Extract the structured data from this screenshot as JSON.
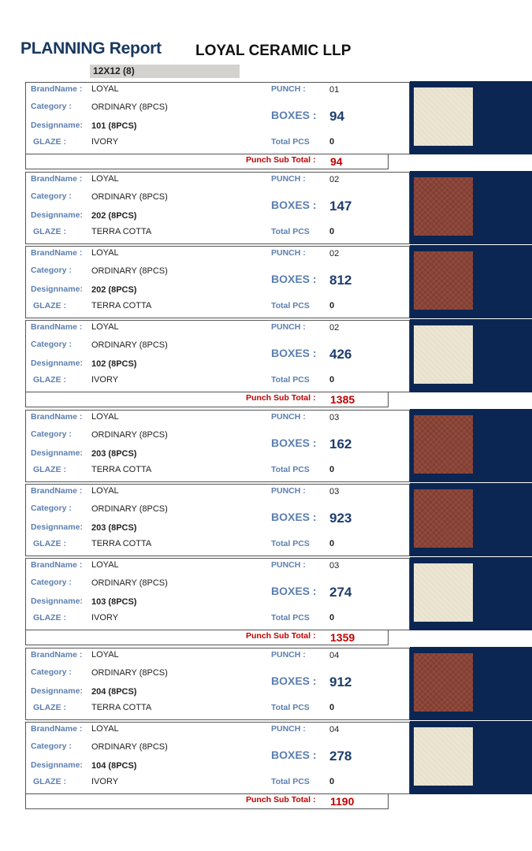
{
  "header": {
    "title": "PLANNING Report",
    "company": "LOYAL CERAMIC LLP",
    "size_group": "12X12 (8)"
  },
  "labels": {
    "brand": "BrandName :",
    "category": "Category :",
    "design": "Designname:",
    "glaze": "GLAZE :",
    "punch": "PUNCH :",
    "boxes": "BOXES :",
    "total_pcs": "Total PCS",
    "subtotal": "Punch Sub Total :"
  },
  "colors": {
    "navy": "#0b2652",
    "ivory": "#ebe5d2",
    "terra_cotta": "#8b4336",
    "label_blue": "#5c7fb0",
    "subtotal_red": "#c00000"
  },
  "rows": [
    {
      "brand": "LOYAL",
      "category": "ORDINARY (8PCS)",
      "design": "101 (8PCS)",
      "glaze": "IVORY",
      "punch": "01",
      "boxes": "94",
      "total_pcs": "0"
    },
    {
      "brand": "LOYAL",
      "category": "ORDINARY (8PCS)",
      "design": "202 (8PCS)",
      "glaze": "TERRA COTTA",
      "punch": "02",
      "boxes": "147",
      "total_pcs": "0"
    },
    {
      "brand": "LOYAL",
      "category": "ORDINARY (8PCS)",
      "design": "202 (8PCS)",
      "glaze": "TERRA COTTA",
      "punch": "02",
      "boxes": "812",
      "total_pcs": "0"
    },
    {
      "brand": "LOYAL",
      "category": "ORDINARY (8PCS)",
      "design": "102 (8PCS)",
      "glaze": "IVORY",
      "punch": "02",
      "boxes": "426",
      "total_pcs": "0"
    },
    {
      "brand": "LOYAL",
      "category": "ORDINARY (8PCS)",
      "design": "203 (8PCS)",
      "glaze": "TERRA COTTA",
      "punch": "03",
      "boxes": "162",
      "total_pcs": "0"
    },
    {
      "brand": "LOYAL",
      "category": "ORDINARY (8PCS)",
      "design": "203 (8PCS)",
      "glaze": "TERRA COTTA",
      "punch": "03",
      "boxes": "923",
      "total_pcs": "0"
    },
    {
      "brand": "LOYAL",
      "category": "ORDINARY (8PCS)",
      "design": "103 (8PCS)",
      "glaze": "IVORY",
      "punch": "03",
      "boxes": "274",
      "total_pcs": "0"
    },
    {
      "brand": "LOYAL",
      "category": "ORDINARY (8PCS)",
      "design": "204 (8PCS)",
      "glaze": "TERRA COTTA",
      "punch": "04",
      "boxes": "912",
      "total_pcs": "0"
    },
    {
      "brand": "LOYAL",
      "category": "ORDINARY (8PCS)",
      "design": "104 (8PCS)",
      "glaze": "IVORY",
      "punch": "04",
      "boxes": "278",
      "total_pcs": "0"
    }
  ],
  "subtotals": [
    "94",
    "1385",
    "1359",
    "1190"
  ]
}
